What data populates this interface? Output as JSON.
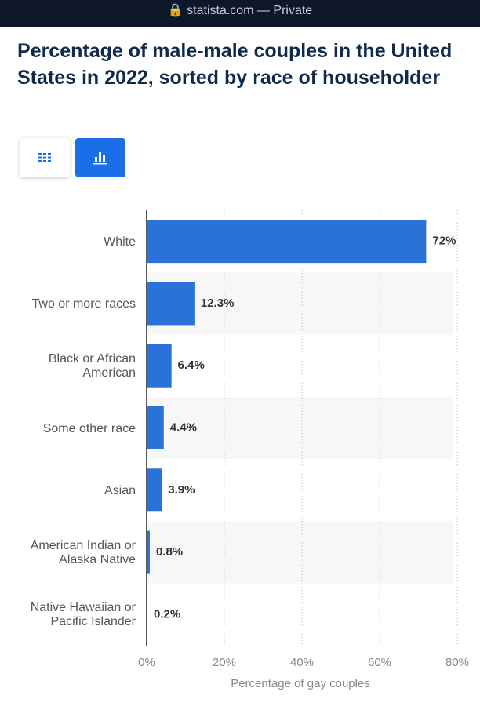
{
  "browser_bar": "statista.com — Private",
  "chart_data": {
    "type": "bar",
    "orientation": "horizontal",
    "title": "Percentage of male-male couples in the United States in 2022, sorted by race of householder",
    "categories": [
      "White",
      "Two or more races",
      "Black or African American",
      "Some other race",
      "Asian",
      "American Indian or Alaska Native",
      "Native Hawaiian or Pacific Islander"
    ],
    "values": [
      72,
      12.3,
      6.4,
      4.4,
      3.9,
      0.8,
      0.2
    ],
    "value_labels": [
      "72%",
      "12.3%",
      "6.4%",
      "4.4%",
      "3.9%",
      "0.8%",
      "0.2%"
    ],
    "color": "#2a72d9",
    "xlim": [
      0,
      80
    ],
    "xticks": [
      {
        "value": 0,
        "label": "0%"
      },
      {
        "value": 20,
        "label": "20%"
      },
      {
        "value": 40,
        "label": "40%"
      },
      {
        "value": 60,
        "label": "60%"
      },
      {
        "value": 80,
        "label": "80%"
      }
    ],
    "x_label": "Percentage of gay couples",
    "grid": true
  }
}
